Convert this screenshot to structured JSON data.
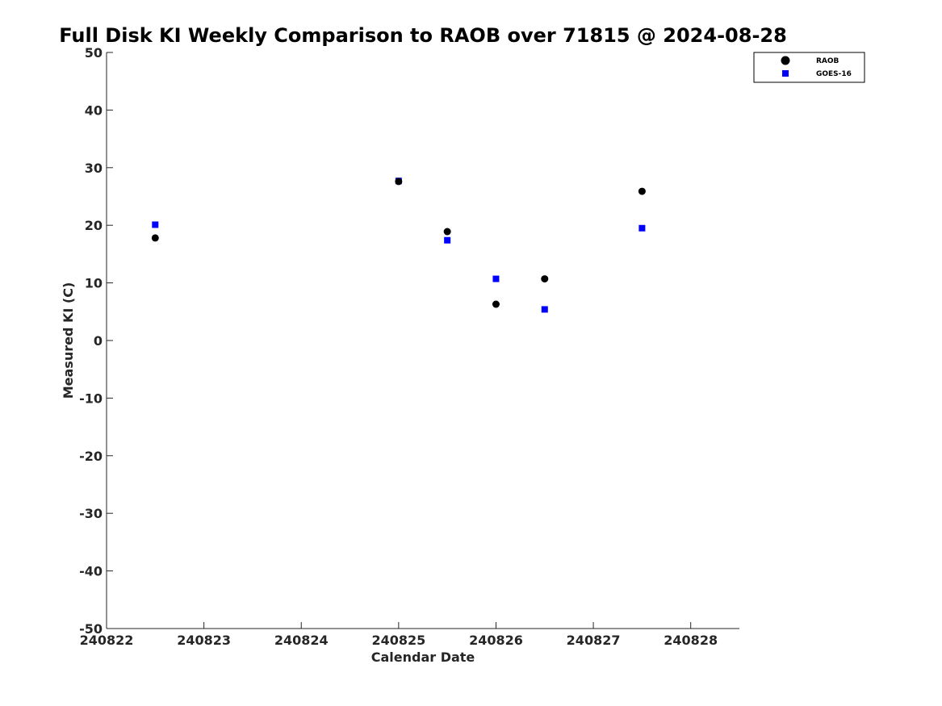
{
  "chart_data": {
    "type": "scatter",
    "title": "Full Disk KI Weekly Comparison to RAOB over 71815 @ 2024-08-28",
    "xlabel": "Calendar Date",
    "ylabel": "Measured KI (C)",
    "xlim": [
      240822,
      240828.5
    ],
    "ylim": [
      -50,
      50
    ],
    "x_ticks": [
      240822,
      240823,
      240824,
      240825,
      240826,
      240827,
      240828
    ],
    "x_tick_labels": [
      "240822",
      "240823",
      "240824",
      "240825",
      "240826",
      "240827",
      "240828"
    ],
    "y_ticks": [
      -50,
      -40,
      -30,
      -20,
      -10,
      0,
      10,
      20,
      30,
      40,
      50
    ],
    "y_tick_labels": [
      "-50",
      "-40",
      "-30",
      "-20",
      "-10",
      "0",
      "10",
      "20",
      "30",
      "40",
      "50"
    ],
    "grid": false,
    "legend_position": "top-right",
    "series": [
      {
        "name": "RAOB",
        "marker": "circle",
        "color": "#000000",
        "x": [
          240822.5,
          240825.0,
          240825.5,
          240826.0,
          240826.5,
          240827.5
        ],
        "y": [
          17.8,
          27.6,
          18.9,
          6.3,
          10.7,
          25.9
        ]
      },
      {
        "name": "GOES-16",
        "marker": "square",
        "color": "#0000ff",
        "x": [
          240822.5,
          240825.0,
          240825.5,
          240826.0,
          240826.5,
          240827.5
        ],
        "y": [
          20.1,
          27.7,
          17.4,
          10.7,
          5.4,
          19.5
        ]
      }
    ]
  }
}
